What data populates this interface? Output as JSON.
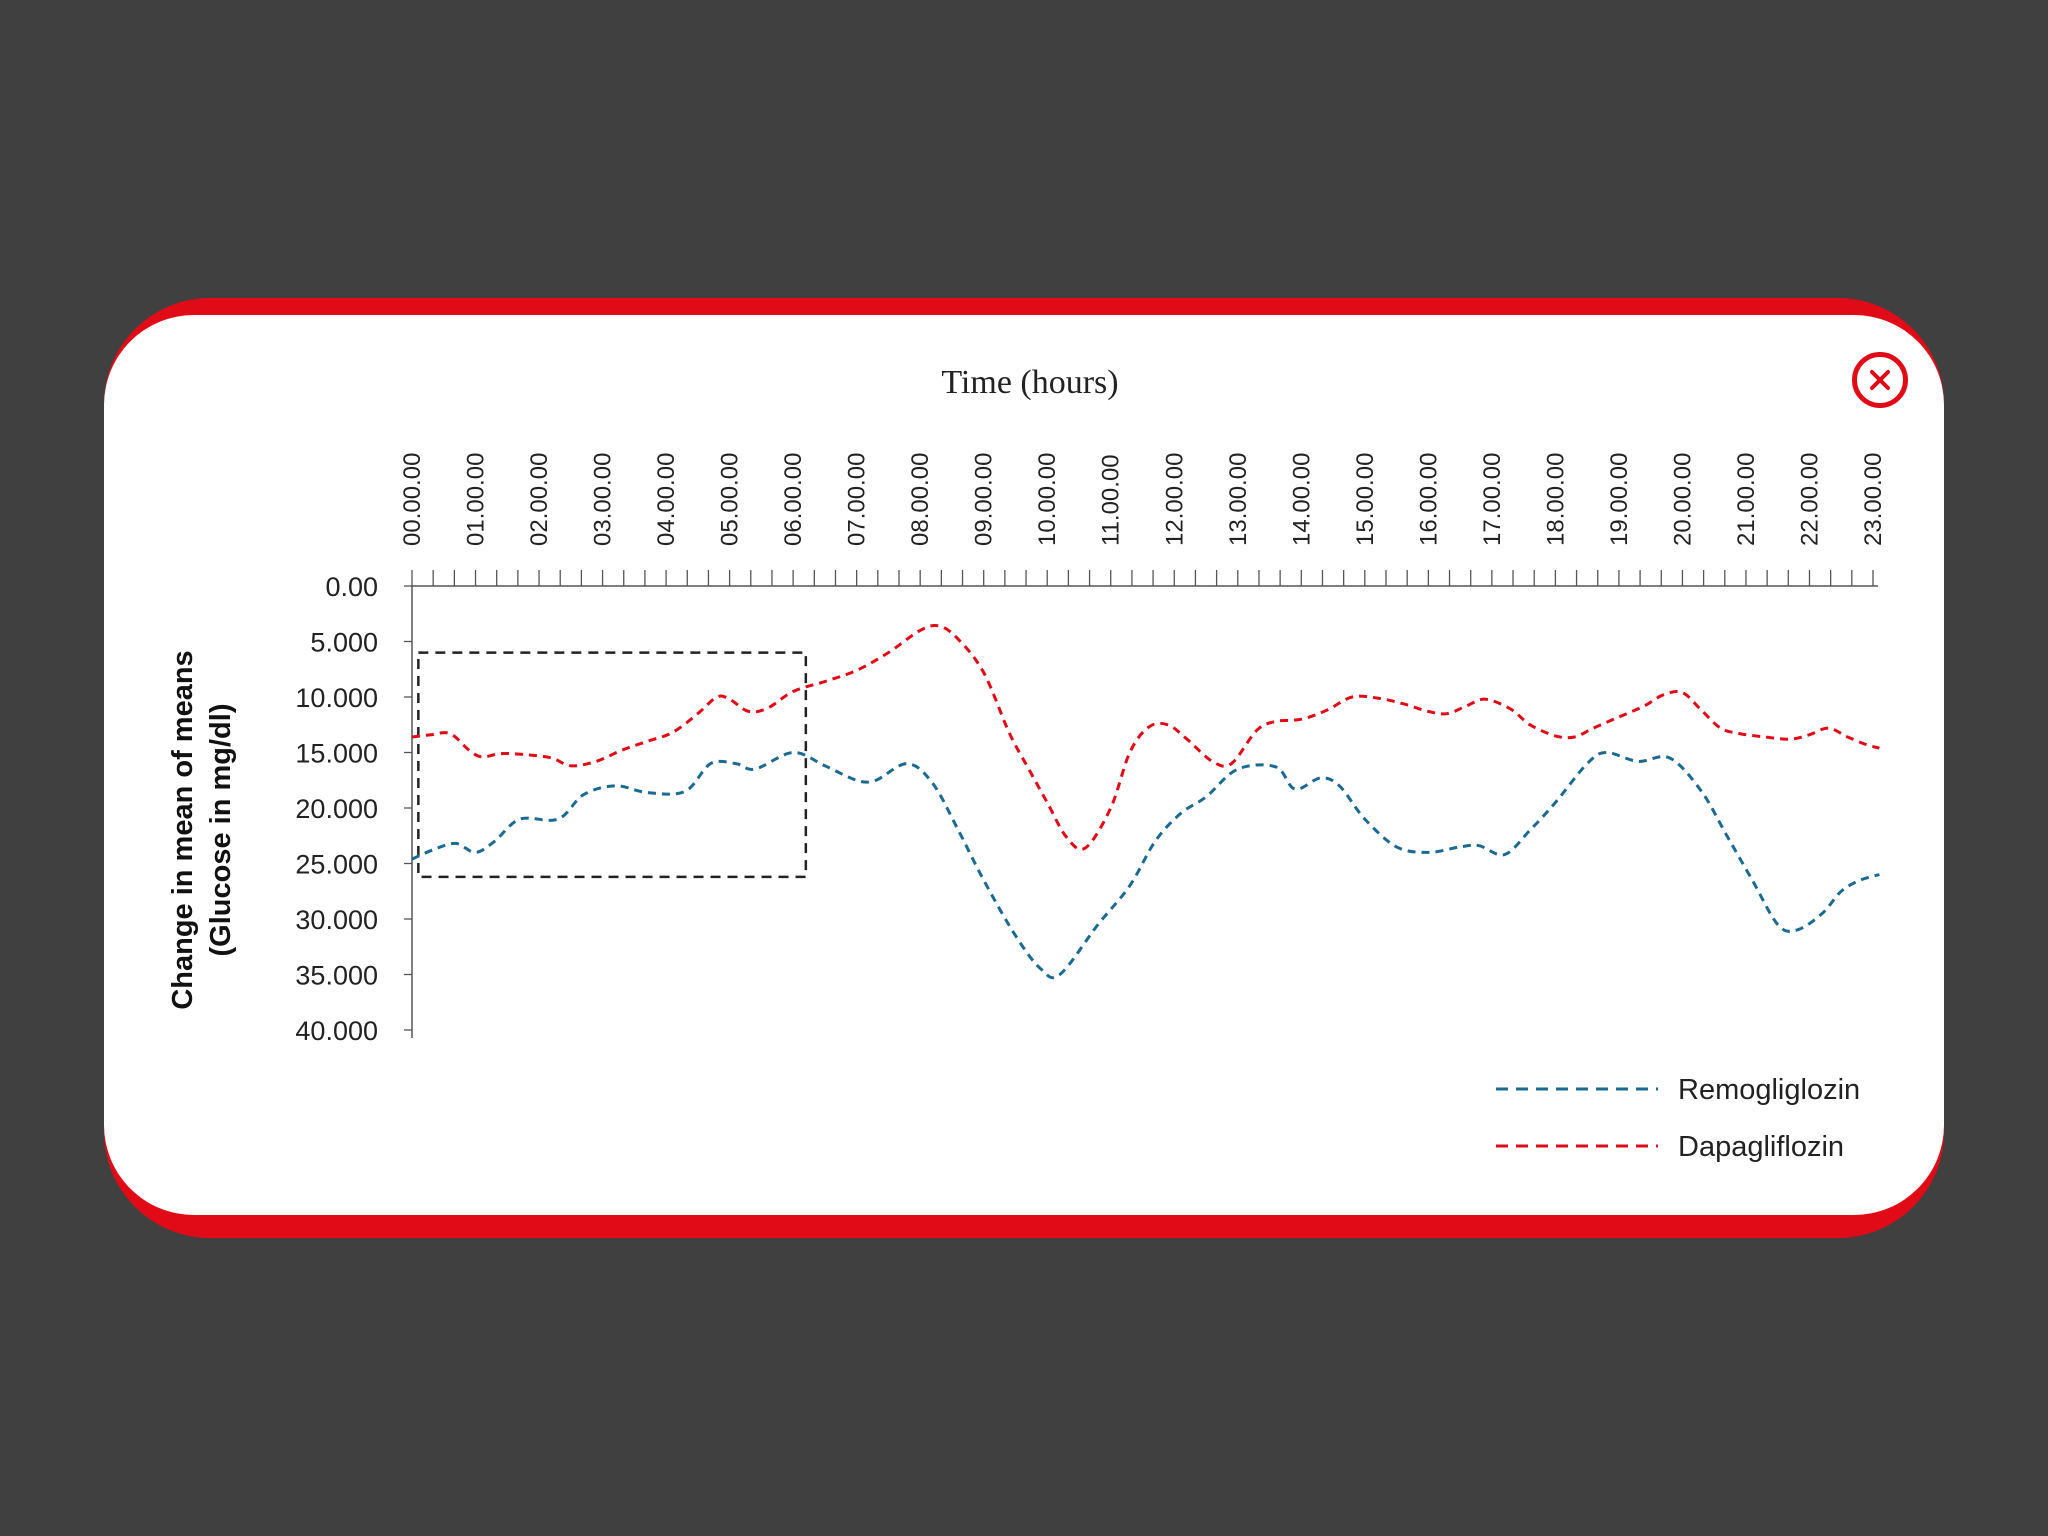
{
  "chart_data": {
    "type": "line",
    "xlabel": "Time (hours)",
    "ylabel": [
      "Change in mean of means",
      "(Glucose in mg/dl)"
    ],
    "x_ticks": [
      "00.00.00",
      "01.00.00",
      "02.00.00",
      "03.00.00",
      "04.00.00",
      "05.00.00",
      "06.00.00",
      "07.00.00",
      "08.00.00",
      "09.00.00",
      "10.00.00",
      "11.00.00",
      "12.00.00",
      "13.00.00",
      "14.00.00",
      "15.00.00",
      "16.00.00",
      "17.00.00",
      "18.00.00",
      "19.00.00",
      "20.00.00",
      "21.00.00",
      "22.00.00",
      "23.00.00"
    ],
    "y_ticks": [
      "0.00",
      "5.000",
      "10.000",
      "15.000",
      "20.000",
      "25.000",
      "30.000",
      "35.000",
      "40.000"
    ],
    "ylim": [
      0,
      40
    ],
    "y_inverted": true,
    "x_axis_position": "top",
    "highlight_box": {
      "x_range": [
        0.1,
        6.2
      ],
      "y_range": [
        6,
        26.2
      ],
      "style": "dashed"
    },
    "series": [
      {
        "name": "Remogliglozin",
        "color": "#1a6a91",
        "points": [
          [
            0,
            24.6
          ],
          [
            0.4,
            23.6
          ],
          [
            0.7,
            23.2
          ],
          [
            1.0,
            24.0
          ],
          [
            1.3,
            23.0
          ],
          [
            1.7,
            21.0
          ],
          [
            2.3,
            21.0
          ],
          [
            2.7,
            18.8
          ],
          [
            3.2,
            18.0
          ],
          [
            3.7,
            18.6
          ],
          [
            4.3,
            18.5
          ],
          [
            4.7,
            16.0
          ],
          [
            5.1,
            16.0
          ],
          [
            5.4,
            16.5
          ],
          [
            6.0,
            15.0
          ],
          [
            6.5,
            16.2
          ],
          [
            7.0,
            17.5
          ],
          [
            7.3,
            17.5
          ],
          [
            7.8,
            16.0
          ],
          [
            8.2,
            17.8
          ],
          [
            8.6,
            22.0
          ],
          [
            9.0,
            26.5
          ],
          [
            9.5,
            31.5
          ],
          [
            9.9,
            34.5
          ],
          [
            10.2,
            35.0
          ],
          [
            10.8,
            30.5
          ],
          [
            11.3,
            27.0
          ],
          [
            11.7,
            23.0
          ],
          [
            12.1,
            20.5
          ],
          [
            12.5,
            19.0
          ],
          [
            13.0,
            16.5
          ],
          [
            13.6,
            16.3
          ],
          [
            13.9,
            18.3
          ],
          [
            14.3,
            17.3
          ],
          [
            14.6,
            18.0
          ],
          [
            15.0,
            21.0
          ],
          [
            15.5,
            23.5
          ],
          [
            16.0,
            24.0
          ],
          [
            16.5,
            23.5
          ],
          [
            16.8,
            23.4
          ],
          [
            17.2,
            24.2
          ],
          [
            17.6,
            22.0
          ],
          [
            18.0,
            19.5
          ],
          [
            18.5,
            16.0
          ],
          [
            18.8,
            15.0
          ],
          [
            19.3,
            15.8
          ],
          [
            19.8,
            15.5
          ],
          [
            20.3,
            18.5
          ],
          [
            20.7,
            22.5
          ],
          [
            21.1,
            26.5
          ],
          [
            21.5,
            30.5
          ],
          [
            21.8,
            31.0
          ],
          [
            22.2,
            29.5
          ],
          [
            22.5,
            27.5
          ],
          [
            22.8,
            26.5
          ],
          [
            23.1,
            26.0
          ]
        ]
      },
      {
        "name": "Dapagliflozin",
        "color": "#e10a17",
        "points": [
          [
            0,
            13.6
          ],
          [
            0.3,
            13.4
          ],
          [
            0.6,
            13.3
          ],
          [
            0.9,
            14.8
          ],
          [
            1.1,
            15.4
          ],
          [
            1.4,
            15.1
          ],
          [
            1.8,
            15.2
          ],
          [
            2.2,
            15.5
          ],
          [
            2.5,
            16.2
          ],
          [
            2.9,
            15.8
          ],
          [
            3.3,
            14.8
          ],
          [
            3.7,
            14.0
          ],
          [
            4.1,
            13.2
          ],
          [
            4.5,
            11.5
          ],
          [
            4.8,
            10.0
          ],
          [
            5.0,
            10.2
          ],
          [
            5.3,
            11.3
          ],
          [
            5.6,
            11.0
          ],
          [
            6.0,
            9.5
          ],
          [
            6.5,
            8.6
          ],
          [
            7.0,
            7.6
          ],
          [
            7.5,
            6.0
          ],
          [
            8.0,
            4.0
          ],
          [
            8.3,
            3.6
          ],
          [
            8.6,
            4.8
          ],
          [
            9.0,
            7.8
          ],
          [
            9.4,
            13.2
          ],
          [
            9.7,
            16.4
          ],
          [
            10.0,
            19.5
          ],
          [
            10.3,
            22.6
          ],
          [
            10.6,
            23.6
          ],
          [
            11.0,
            20.0
          ],
          [
            11.3,
            15.0
          ],
          [
            11.6,
            12.7
          ],
          [
            11.9,
            12.5
          ],
          [
            12.2,
            13.8
          ],
          [
            12.6,
            15.8
          ],
          [
            12.9,
            16.0
          ],
          [
            13.3,
            13.0
          ],
          [
            13.6,
            12.2
          ],
          [
            14.0,
            12.0
          ],
          [
            14.4,
            11.2
          ],
          [
            14.8,
            10.0
          ],
          [
            15.2,
            10.1
          ],
          [
            15.6,
            10.6
          ],
          [
            16.0,
            11.3
          ],
          [
            16.3,
            11.5
          ],
          [
            16.6,
            10.8
          ],
          [
            16.9,
            10.2
          ],
          [
            17.3,
            11.1
          ],
          [
            17.6,
            12.5
          ],
          [
            18.0,
            13.5
          ],
          [
            18.3,
            13.6
          ],
          [
            18.6,
            12.8
          ],
          [
            19.0,
            11.8
          ],
          [
            19.4,
            10.8
          ],
          [
            19.7,
            9.8
          ],
          [
            20.0,
            9.6
          ],
          [
            20.3,
            11.2
          ],
          [
            20.6,
            12.8
          ],
          [
            20.9,
            13.3
          ],
          [
            21.3,
            13.6
          ],
          [
            21.7,
            13.8
          ],
          [
            22.0,
            13.4
          ],
          [
            22.3,
            12.8
          ],
          [
            22.6,
            13.6
          ],
          [
            22.9,
            14.3
          ],
          [
            23.1,
            14.6
          ]
        ]
      }
    ]
  },
  "close_button": {
    "icon": "close-icon",
    "color": "#e10a17"
  }
}
